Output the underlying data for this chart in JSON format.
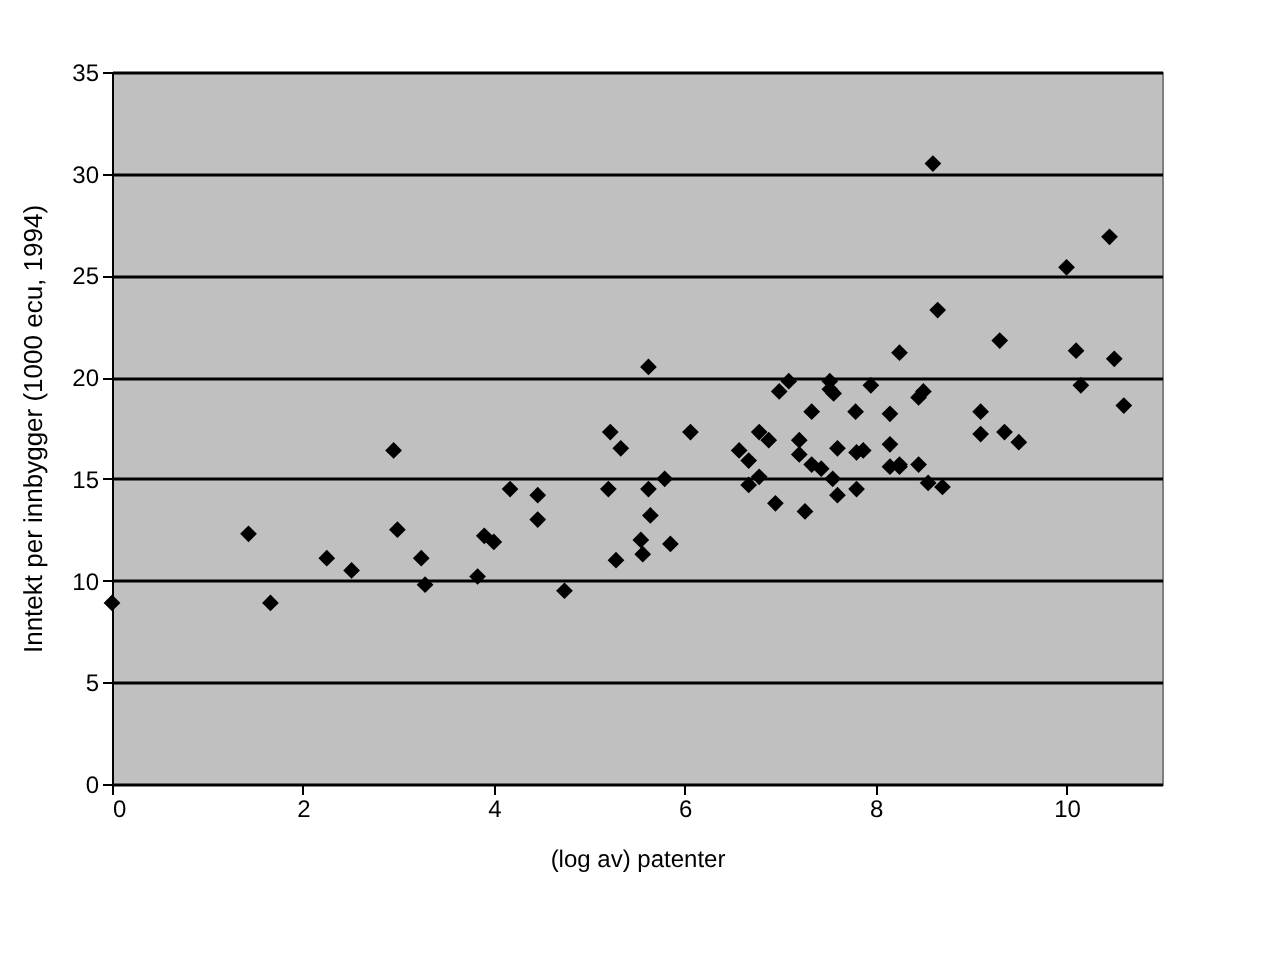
{
  "chart_data": {
    "type": "scatter",
    "xlabel": "(log av) patenter",
    "ylabel": "Inntekt per innbygger (1000 ecu, 1994)",
    "x": [
      0,
      1.43,
      1.66,
      2.25,
      2.51,
      2.95,
      2.99,
      3.24,
      3.28,
      3.83,
      3.9,
      4.0,
      4.17,
      4.46,
      4.46,
      4.74,
      5.2,
      5.22,
      5.28,
      5.33,
      5.54,
      5.56,
      5.62,
      5.62,
      5.64,
      5.79,
      5.85,
      6.06,
      6.57,
      6.67,
      6.67,
      6.78,
      6.78,
      6.88,
      6.95,
      6.99,
      7.09,
      7.2,
      7.2,
      7.26,
      7.33,
      7.33,
      7.43,
      7.52,
      7.52,
      7.56,
      7.55,
      7.6,
      7.6,
      7.79,
      7.8,
      7.8,
      7.87,
      7.95,
      8.15,
      8.15,
      8.15,
      8.25,
      8.25,
      8.25,
      8.45,
      8.45,
      8.5,
      8.55,
      8.6,
      8.65,
      8.7,
      9.1,
      9.1,
      9.3,
      9.35,
      9.5,
      10.0,
      10.1,
      10.15,
      10.45,
      10.5,
      10.6
    ],
    "values": [
      8.9,
      12.3,
      8.9,
      11.1,
      10.5,
      16.4,
      12.5,
      11.1,
      9.8,
      10.2,
      12.2,
      11.9,
      14.5,
      14.2,
      13.0,
      9.5,
      14.5,
      17.3,
      11.0,
      16.5,
      12.0,
      11.3,
      20.5,
      14.5,
      13.2,
      15.0,
      11.8,
      17.3,
      16.4,
      15.9,
      14.7,
      17.3,
      15.1,
      16.9,
      13.8,
      19.3,
      19.8,
      16.9,
      16.2,
      13.4,
      18.3,
      15.7,
      15.5,
      19.8,
      19.4,
      19.2,
      15.0,
      16.5,
      14.2,
      18.3,
      16.3,
      14.5,
      16.4,
      19.6,
      18.2,
      16.7,
      15.6,
      21.2,
      15.6,
      15.7,
      19.0,
      15.7,
      19.3,
      14.8,
      30.5,
      23.3,
      14.6,
      18.3,
      17.2,
      21.8,
      17.3,
      16.8,
      25.4,
      21.3,
      19.6,
      26.9,
      20.9,
      18.6
    ],
    "color": "#000000",
    "marker": "diamond",
    "xlim": [
      0,
      11
    ],
    "xticks": [
      0,
      2,
      4,
      6,
      8,
      10
    ],
    "ylim": [
      0,
      35
    ],
    "yticks": [
      0,
      5,
      10,
      15,
      20,
      25,
      30,
      35
    ],
    "grid": "y"
  }
}
